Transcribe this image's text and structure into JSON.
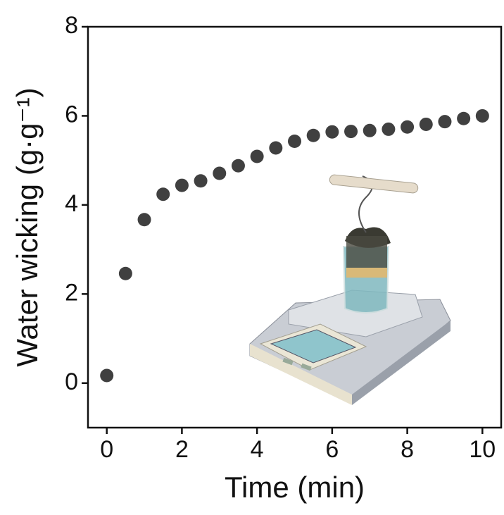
{
  "chart_data": {
    "type": "scatter",
    "xlabel": "Time (min)",
    "ylabel": "Water wicking (g·g⁻¹)",
    "x": [
      0,
      0.5,
      1,
      1.5,
      2,
      2.5,
      3,
      3.5,
      4,
      4.5,
      5,
      5.5,
      6,
      6.5,
      7,
      7.5,
      8,
      8.5,
      9,
      9.5,
      10
    ],
    "values": [
      0.17,
      2.46,
      3.67,
      4.24,
      4.44,
      4.54,
      4.71,
      4.88,
      5.09,
      5.28,
      5.43,
      5.56,
      5.64,
      5.65,
      5.67,
      5.7,
      5.75,
      5.81,
      5.87,
      5.94,
      6.0
    ],
    "color": "#404040",
    "xlim": [
      -0.5,
      10.5
    ],
    "xticks": [
      0,
      2,
      4,
      6,
      8,
      10
    ],
    "ylim": [
      -1,
      8
    ],
    "yticks": [
      0,
      2,
      4,
      6,
      8
    ],
    "grid": false
  }
}
